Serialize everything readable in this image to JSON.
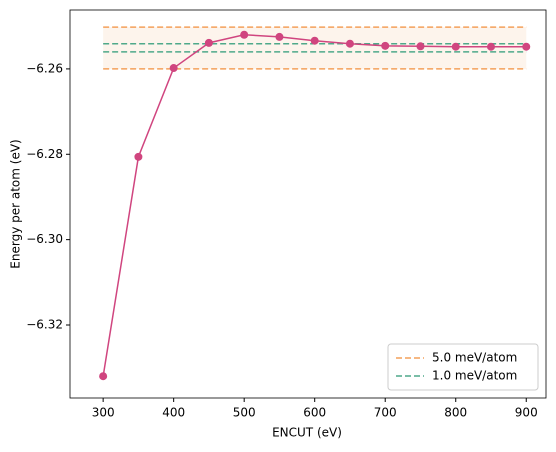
{
  "chart_data": {
    "type": "line",
    "xlabel": "ENCUT (eV)",
    "ylabel": "Energy per atom (eV)",
    "x": [
      300,
      350,
      400,
      450,
      500,
      550,
      600,
      650,
      700,
      750,
      800,
      850,
      900
    ],
    "series": [
      {
        "color": "#d0457f",
        "values": [
          -6.332,
          -6.2806,
          -6.2598,
          -6.2539,
          -6.252,
          -6.2525,
          -6.2534,
          -6.2541,
          -6.2546,
          -6.2547,
          -6.2548,
          -6.2548,
          -6.2548
        ]
      }
    ],
    "bands": [
      {
        "name": "5.0 meV/atom",
        "color": "#f4a05a",
        "lower": -6.26,
        "upper": -6.2502,
        "shade": "#fdf4ec"
      },
      {
        "name": "1.0 meV/atom",
        "color": "#4fa98a",
        "lower": -6.256,
        "upper": -6.2541
      }
    ],
    "xlim": [
      253,
      928
    ],
    "ylim": [
      -6.3371,
      -6.2462
    ],
    "xticks": [
      300,
      400,
      500,
      600,
      700,
      800,
      900
    ],
    "yticks": [
      {
        "value": -6.32,
        "label": "−6.32"
      },
      {
        "value": -6.3,
        "label": "−6.30"
      },
      {
        "value": -6.28,
        "label": "−6.28"
      },
      {
        "value": -6.26,
        "label": "−6.26"
      }
    ],
    "legend": "lower right"
  }
}
